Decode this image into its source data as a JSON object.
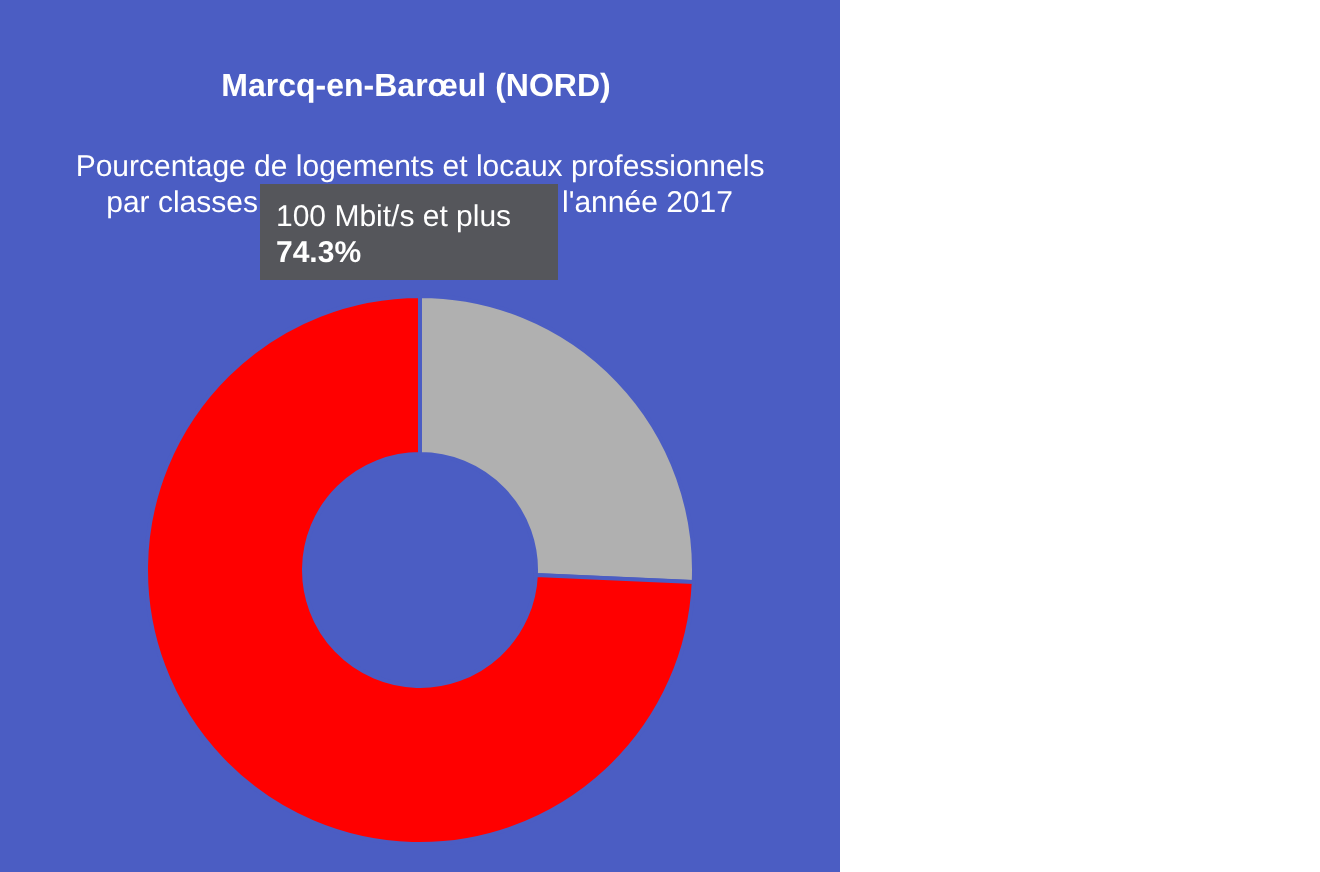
{
  "chart_data": {
    "type": "donut",
    "title": "Marcq-en-Barœul (NORD)",
    "subtitle": "Pourcentage de logements et locaux professionnels",
    "annotations": [
      "par classes",
      "l'année 2017"
    ],
    "categories": [
      null,
      "100 Mbit/s et plus"
    ],
    "values": [
      25.7,
      74.3
    ],
    "colors": [
      "#b0b0b0",
      "#ff0000"
    ],
    "value_labels": [
      null,
      "74.3%"
    ]
  }
}
